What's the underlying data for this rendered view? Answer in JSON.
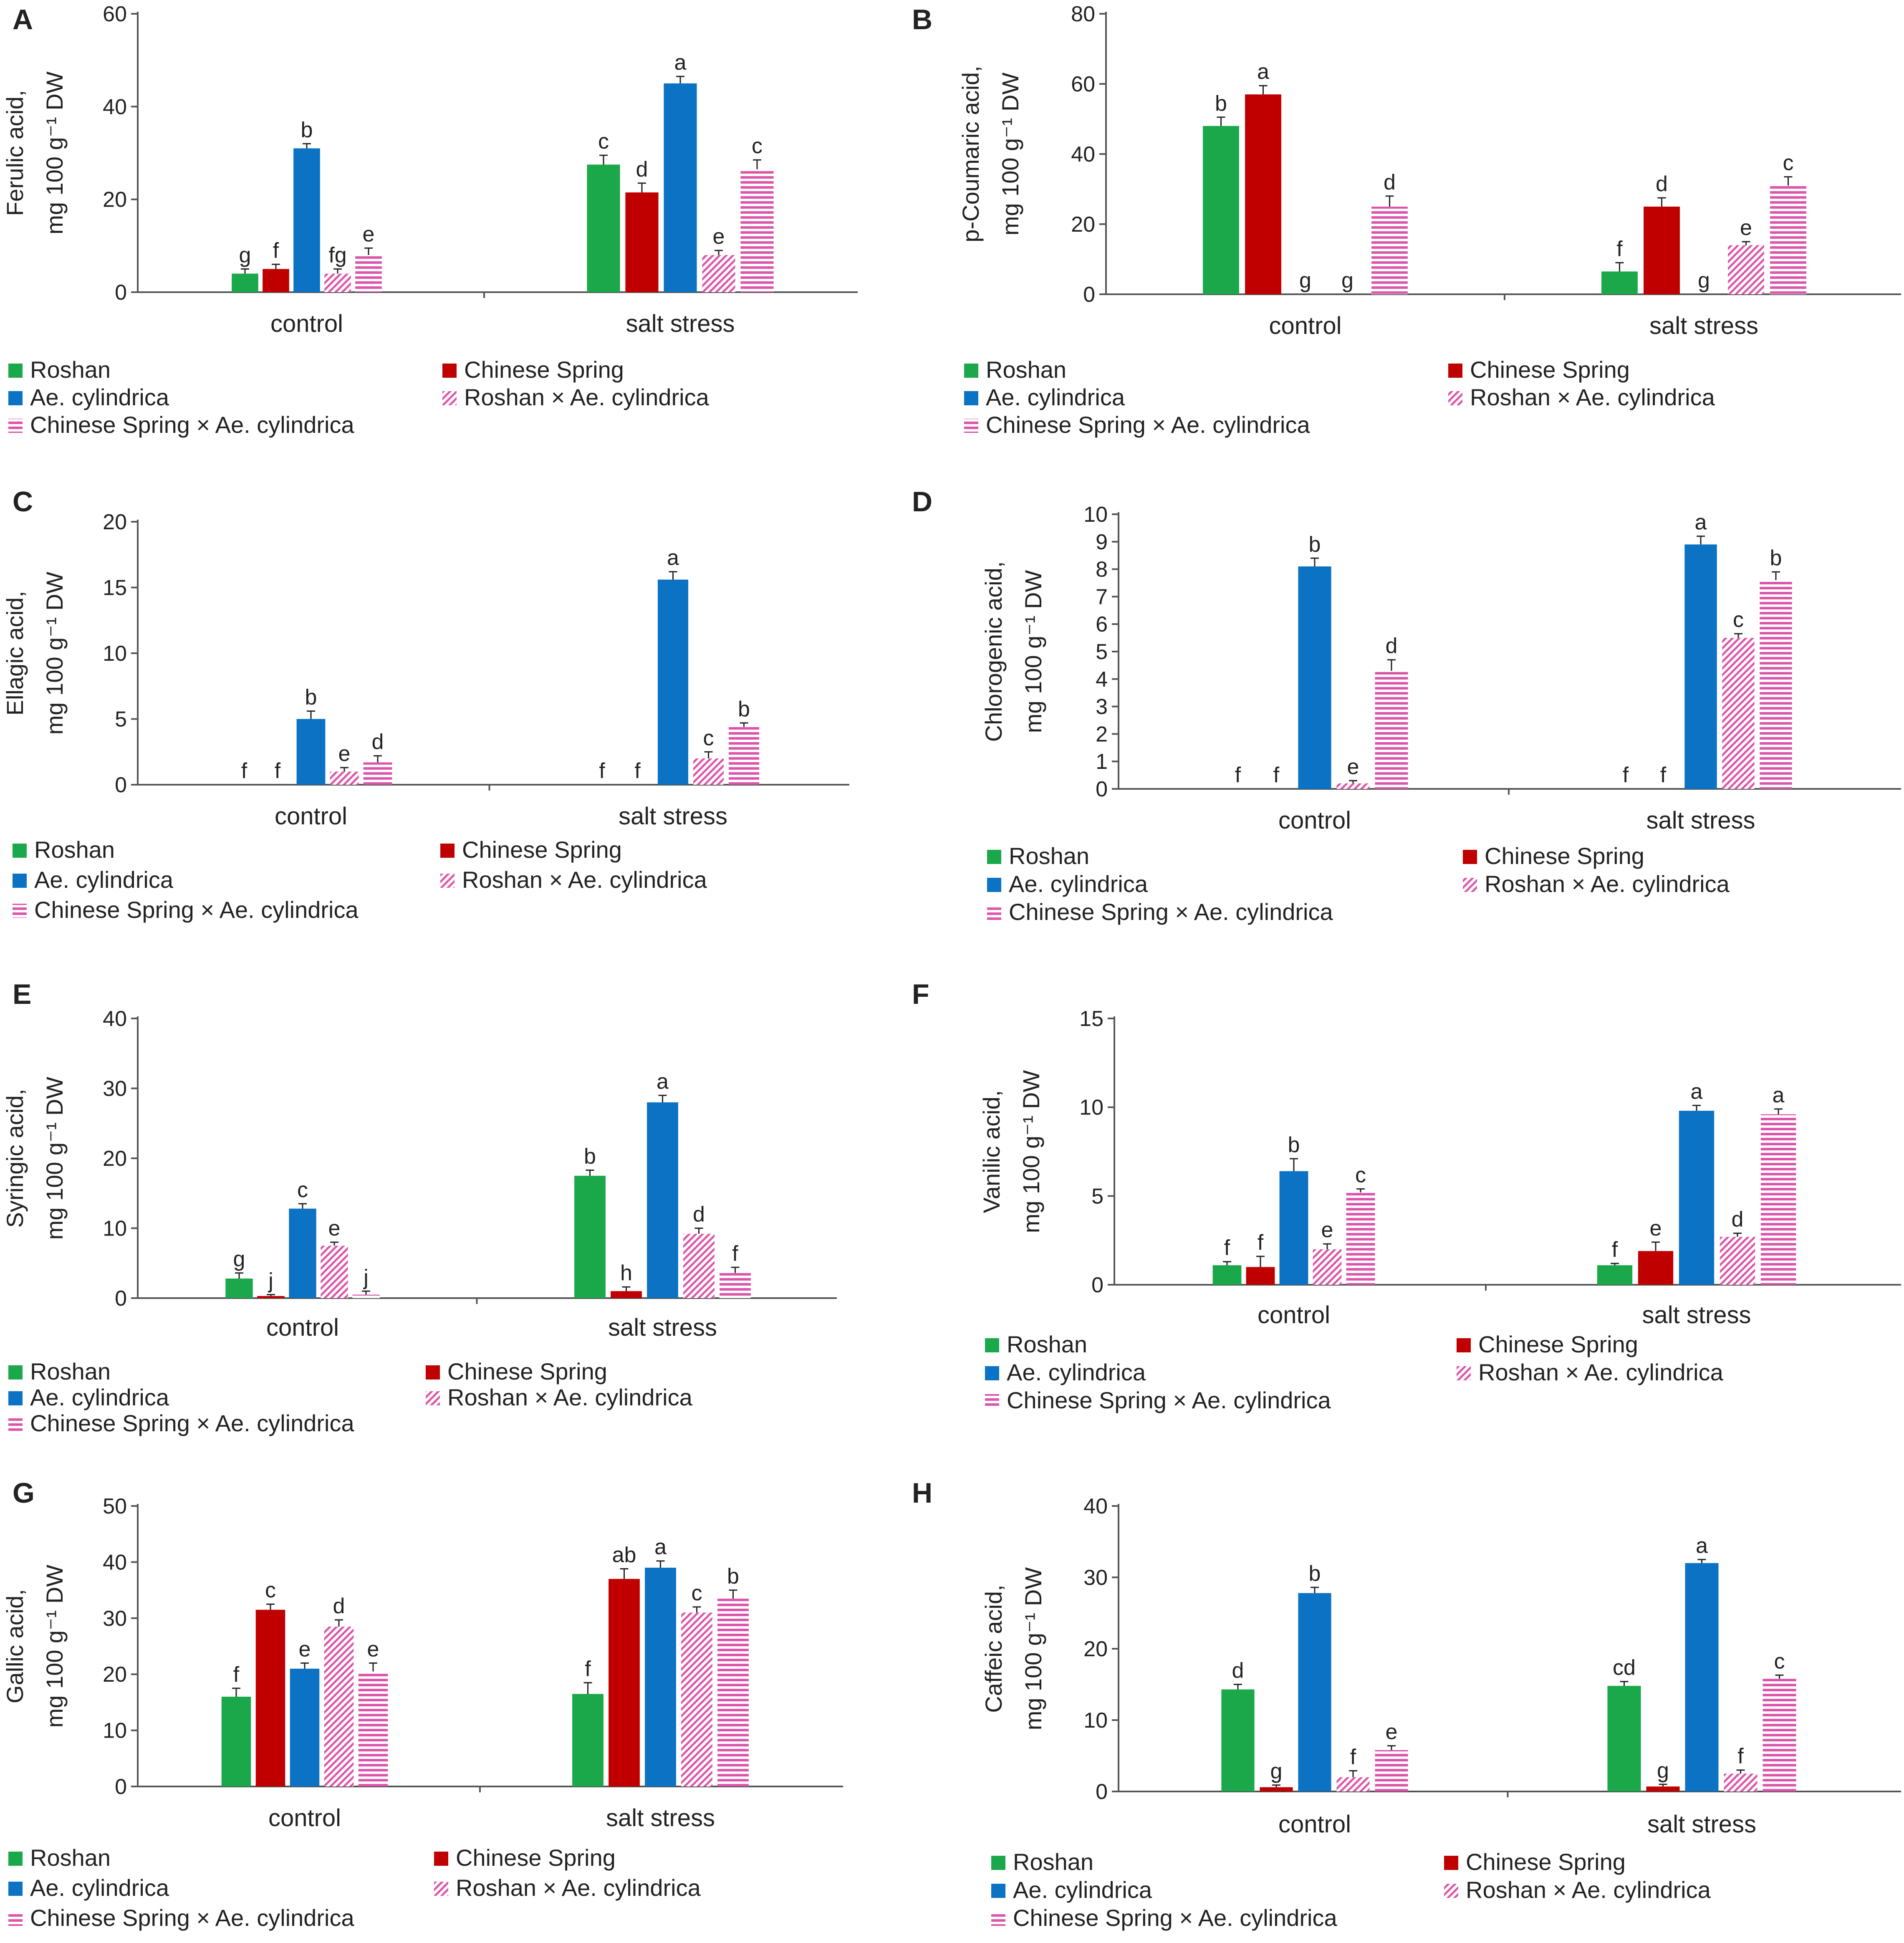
{
  "figure": {
    "series": [
      {
        "name": "Roshan",
        "color": "#1aa84a",
        "pattern": "solid"
      },
      {
        "name": "Chinese Spring",
        "color": "#c00000",
        "pattern": "solid"
      },
      {
        "name": "Ae. cylindrica",
        "color": "#0b72c4",
        "pattern": "solid"
      },
      {
        "name": "Roshan × Ae. cylindrica",
        "color": "#dd55aa",
        "pattern": "diagonal"
      },
      {
        "name": "Chinese Spring × Ae. cylindrica",
        "color": "#dd55aa",
        "pattern": "horizontal"
      }
    ],
    "categories": [
      "control",
      "salt stress"
    ]
  },
  "chart_data": [
    {
      "id": "A",
      "type": "bar",
      "ylabel_line1": "Ferulic acid,",
      "ylabel_line2": "mg 100 g⁻¹ DW",
      "ylim": [
        0,
        60
      ],
      "yticks": [
        0,
        20,
        40,
        60
      ],
      "categories": [
        "control",
        "salt stress"
      ],
      "series": [
        {
          "name": "Roshan",
          "values": [
            4,
            27.5
          ],
          "errors": [
            1,
            2
          ],
          "letters": [
            "g",
            "c"
          ]
        },
        {
          "name": "Chinese Spring",
          "values": [
            5,
            21.5
          ],
          "errors": [
            1,
            2
          ],
          "letters": [
            "f",
            "d"
          ]
        },
        {
          "name": "Ae. cylindrica",
          "values": [
            31,
            45
          ],
          "errors": [
            1,
            1.5
          ],
          "letters": [
            "b",
            "a"
          ]
        },
        {
          "name": "Roshan × Ae. cylindrica",
          "values": [
            4,
            8
          ],
          "errors": [
            1,
            1
          ],
          "letters": [
            "fg",
            "e"
          ]
        },
        {
          "name": "Chinese Spring × Ae. cylindrica",
          "values": [
            8,
            26.5
          ],
          "errors": [
            1.5,
            2
          ],
          "letters": [
            "e",
            "c"
          ]
        }
      ]
    },
    {
      "id": "B",
      "type": "bar",
      "ylabel_line1": "p-Coumaric acid,",
      "ylabel_line2": "mg 100 g⁻¹ DW",
      "ylim": [
        0,
        80
      ],
      "yticks": [
        0,
        20,
        40,
        60,
        80
      ],
      "categories": [
        "control",
        "salt stress"
      ],
      "series": [
        {
          "name": "Roshan",
          "values": [
            48,
            6.5
          ],
          "errors": [
            2.5,
            2.5
          ],
          "letters": [
            "b",
            "f"
          ]
        },
        {
          "name": "Chinese Spring",
          "values": [
            57,
            25
          ],
          "errors": [
            2.5,
            2.5
          ],
          "letters": [
            "a",
            "d"
          ]
        },
        {
          "name": "Ae. cylindrica",
          "values": [
            0,
            0
          ],
          "errors": [
            0,
            0
          ],
          "letters": [
            "g",
            "g"
          ]
        },
        {
          "name": "Roshan × Ae. cylindrica",
          "values": [
            0,
            14
          ],
          "errors": [
            0,
            1
          ],
          "letters": [
            "g",
            "e"
          ]
        },
        {
          "name": "Chinese Spring × Ae. cylindrica",
          "values": [
            25,
            31
          ],
          "errors": [
            3,
            2.5
          ],
          "letters": [
            "d",
            "c"
          ]
        }
      ]
    },
    {
      "id": "C",
      "type": "bar",
      "ylabel_line1": "Ellagic acid,",
      "ylabel_line2": "mg 100 g⁻¹ DW",
      "ylim": [
        0,
        20
      ],
      "yticks": [
        0,
        5,
        10,
        15,
        20
      ],
      "categories": [
        "control",
        "salt stress"
      ],
      "series": [
        {
          "name": "Roshan",
          "values": [
            0,
            0
          ],
          "errors": [
            0,
            0
          ],
          "letters": [
            "f",
            "f"
          ]
        },
        {
          "name": "Chinese Spring",
          "values": [
            0,
            0
          ],
          "errors": [
            0,
            0
          ],
          "letters": [
            "f",
            "f"
          ]
        },
        {
          "name": "Ae. cylindrica",
          "values": [
            5,
            15.6
          ],
          "errors": [
            0.6,
            0.6
          ],
          "letters": [
            "b",
            "a"
          ]
        },
        {
          "name": "Roshan × Ae. cylindrica",
          "values": [
            1,
            2
          ],
          "errors": [
            0.3,
            0.5
          ],
          "letters": [
            "e",
            "c"
          ]
        },
        {
          "name": "Chinese Spring × Ae. cylindrica",
          "values": [
            1.7,
            4.4
          ],
          "errors": [
            0.5,
            0.3
          ],
          "letters": [
            "d",
            "b"
          ]
        }
      ]
    },
    {
      "id": "D",
      "type": "bar",
      "ylabel_line1": "Chlorogenic acid,",
      "ylabel_line2": "mg 100 g⁻¹ DW",
      "ylim": [
        0,
        10
      ],
      "yticks": [
        0,
        1,
        2,
        3,
        4,
        5,
        6,
        7,
        8,
        9,
        10
      ],
      "categories": [
        "control",
        "salt stress"
      ],
      "series": [
        {
          "name": "Roshan",
          "values": [
            0,
            0
          ],
          "errors": [
            0,
            0
          ],
          "letters": [
            "f",
            "f"
          ]
        },
        {
          "name": "Chinese Spring",
          "values": [
            0,
            0
          ],
          "errors": [
            0,
            0
          ],
          "letters": [
            "f",
            "f"
          ]
        },
        {
          "name": "Ae. cylindrica",
          "values": [
            8.1,
            8.9
          ],
          "errors": [
            0.3,
            0.3
          ],
          "letters": [
            "b",
            "a"
          ]
        },
        {
          "name": "Roshan × Ae. cylindrica",
          "values": [
            0.2,
            5.5
          ],
          "errors": [
            0.1,
            0.15
          ],
          "letters": [
            "e",
            "c"
          ]
        },
        {
          "name": "Chinese Spring × Ae. cylindrica",
          "values": [
            4.3,
            7.6
          ],
          "errors": [
            0.4,
            0.3
          ],
          "letters": [
            "d",
            "b"
          ]
        }
      ]
    },
    {
      "id": "E",
      "type": "bar",
      "ylabel_line1": "Syringic acid,",
      "ylabel_line2": "mg 100 g⁻¹ DW",
      "ylim": [
        0,
        40
      ],
      "yticks": [
        0,
        10,
        20,
        30,
        40
      ],
      "categories": [
        "control",
        "salt stress"
      ],
      "series": [
        {
          "name": "Roshan",
          "values": [
            2.8,
            17.5
          ],
          "errors": [
            0.8,
            0.8
          ],
          "letters": [
            "g",
            "b"
          ]
        },
        {
          "name": "Chinese Spring",
          "values": [
            0.3,
            1
          ],
          "errors": [
            0.2,
            0.6
          ],
          "letters": [
            "j",
            "h"
          ]
        },
        {
          "name": "Ae. cylindrica",
          "values": [
            12.8,
            28
          ],
          "errors": [
            0.7,
            1
          ],
          "letters": [
            "c",
            "a"
          ]
        },
        {
          "name": "Roshan × Ae. cylindrica",
          "values": [
            7.5,
            9.2
          ],
          "errors": [
            0.5,
            0.8
          ],
          "letters": [
            "e",
            "d"
          ]
        },
        {
          "name": "Chinese Spring × Ae. cylindrica",
          "values": [
            0.5,
            3.6
          ],
          "errors": [
            0.5,
            0.8
          ],
          "letters": [
            "j",
            "f"
          ]
        }
      ]
    },
    {
      "id": "F",
      "type": "bar",
      "ylabel_line1": "Vanilic acid,",
      "ylabel_line2": "mg 100 g⁻¹ DW",
      "ylim": [
        0,
        15
      ],
      "yticks": [
        0,
        5,
        10,
        15
      ],
      "categories": [
        "control",
        "salt stress"
      ],
      "series": [
        {
          "name": "Roshan",
          "values": [
            1.1,
            1.1
          ],
          "errors": [
            0.2,
            0.1
          ],
          "letters": [
            "f",
            "f"
          ]
        },
        {
          "name": "Chinese Spring",
          "values": [
            1,
            1.9
          ],
          "errors": [
            0.6,
            0.5
          ],
          "letters": [
            "f",
            "e"
          ]
        },
        {
          "name": "Ae. cylindrica",
          "values": [
            6.4,
            9.8
          ],
          "errors": [
            0.7,
            0.3
          ],
          "letters": [
            "b",
            "a"
          ]
        },
        {
          "name": "Roshan × Ae. cylindrica",
          "values": [
            2,
            2.7
          ],
          "errors": [
            0.3,
            0.2
          ],
          "letters": [
            "e",
            "d"
          ]
        },
        {
          "name": "Chinese Spring × Ae. cylindrica",
          "values": [
            5.2,
            9.6
          ],
          "errors": [
            0.2,
            0.3
          ],
          "letters": [
            "c",
            "a"
          ]
        }
      ]
    },
    {
      "id": "G",
      "type": "bar",
      "ylabel_line1": "Gallic acid,",
      "ylabel_line2": "mg 100 g⁻¹ DW",
      "ylim": [
        0,
        50
      ],
      "yticks": [
        0,
        10,
        20,
        30,
        40,
        50
      ],
      "categories": [
        "control",
        "salt stress"
      ],
      "series": [
        {
          "name": "Roshan",
          "values": [
            16,
            16.5
          ],
          "errors": [
            1.5,
            2
          ],
          "letters": [
            "f",
            "f"
          ]
        },
        {
          "name": "Chinese Spring",
          "values": [
            31.5,
            37
          ],
          "errors": [
            1,
            1.8
          ],
          "letters": [
            "c",
            "ab"
          ]
        },
        {
          "name": "Ae. cylindrica",
          "values": [
            21,
            39
          ],
          "errors": [
            1,
            1.2
          ],
          "letters": [
            "e",
            "a"
          ]
        },
        {
          "name": "Roshan × Ae. cylindrica",
          "values": [
            28.5,
            31
          ],
          "errors": [
            1.2,
            1
          ],
          "letters": [
            "d",
            "c"
          ]
        },
        {
          "name": "Chinese Spring × Ae. cylindrica",
          "values": [
            20.5,
            33.5
          ],
          "errors": [
            1.5,
            1.5
          ],
          "letters": [
            "e",
            "b"
          ]
        }
      ]
    },
    {
      "id": "H",
      "type": "bar",
      "ylabel_line1": "Caffeic acid,",
      "ylabel_line2": "mg 100 g⁻¹ DW",
      "ylim": [
        0,
        40
      ],
      "yticks": [
        0,
        10,
        20,
        30,
        40
      ],
      "categories": [
        "control",
        "salt stress"
      ],
      "series": [
        {
          "name": "Roshan",
          "values": [
            14.3,
            14.8
          ],
          "errors": [
            0.7,
            0.6
          ],
          "letters": [
            "d",
            "cd"
          ]
        },
        {
          "name": "Chinese Spring",
          "values": [
            0.6,
            0.7
          ],
          "errors": [
            0.3,
            0.3
          ],
          "letters": [
            "g",
            "g"
          ]
        },
        {
          "name": "Ae. cylindrica",
          "values": [
            27.8,
            32
          ],
          "errors": [
            0.8,
            0.5
          ],
          "letters": [
            "b",
            "a"
          ]
        },
        {
          "name": "Roshan × Ae. cylindrica",
          "values": [
            2,
            2.5
          ],
          "errors": [
            0.9,
            0.5
          ],
          "letters": [
            "f",
            "f"
          ]
        },
        {
          "name": "Chinese Spring × Ae. cylindrica",
          "values": [
            5.8,
            15.8
          ],
          "errors": [
            0.6,
            0.5
          ],
          "letters": [
            "e",
            "c"
          ]
        }
      ]
    }
  ]
}
